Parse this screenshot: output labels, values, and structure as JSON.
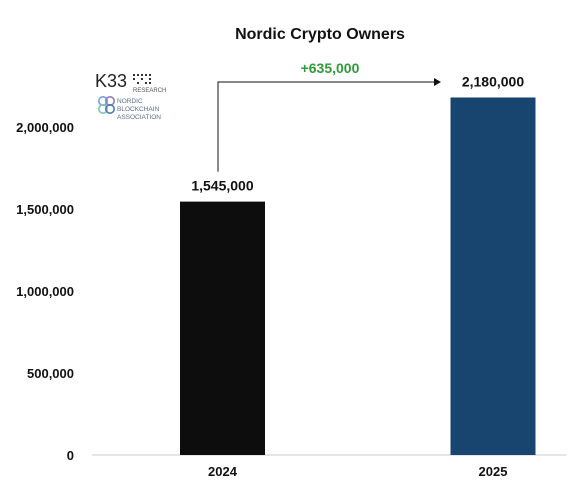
{
  "chart_data": {
    "type": "bar",
    "title": "Nordic Crypto Owners",
    "categories": [
      "2024",
      "2025"
    ],
    "values": [
      1545000,
      2180000
    ],
    "value_labels": [
      "1,545,000",
      "2,180,000"
    ],
    "bar_colors": [
      "#0d0d0d",
      "#184470"
    ],
    "ylim": [
      0,
      2300000
    ],
    "yticks": [
      0,
      500000,
      1000000,
      1500000,
      2000000
    ],
    "ytick_labels": [
      "0",
      "500,000",
      "1,000,000",
      "1,500,000",
      "2,000,000"
    ],
    "annotation": {
      "text": "+635,000",
      "color": "#2e9a3a",
      "from": "2024",
      "to": "2025"
    },
    "grid": false
  },
  "logos": {
    "k33": {
      "text": "K33",
      "sub": "RESEARCH"
    },
    "nba": {
      "lines": [
        "NORDIC",
        "BLOCKCHAIN",
        "ASSOCIATION"
      ]
    }
  }
}
